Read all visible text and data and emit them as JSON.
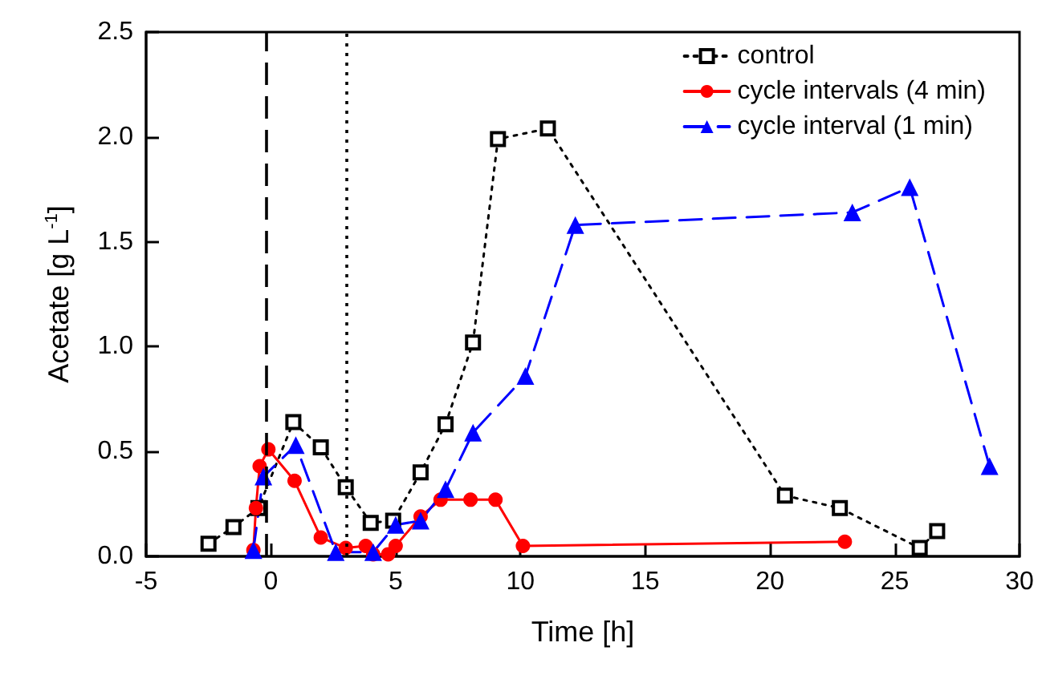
{
  "chart_data": {
    "type": "line",
    "xlabel": "Time [h]",
    "ylabel": "Acetate [g L$^{-1}$]",
    "xlim": [
      -5,
      30
    ],
    "xticks": [
      -5,
      0,
      5,
      10,
      15,
      20,
      25,
      30
    ],
    "ylim": [
      0,
      2.5
    ],
    "yticks": [
      {
        "value": 0,
        "label": "0.0"
      },
      {
        "value": 0.5,
        "label": "0.5"
      },
      {
        "value": 1,
        "label": "1.0"
      },
      {
        "value": 1.5,
        "label": "1.5"
      },
      {
        "value": 2,
        "label": "2.0"
      },
      {
        "value": 2.5,
        "label": "2.5"
      }
    ],
    "grid": false,
    "legend": "top right",
    "ref_lines": [
      {
        "axis": "x",
        "value": -0.2,
        "color": "#000000",
        "line_style": "dashed"
      },
      {
        "axis": "x",
        "value": 3.0,
        "color": "#000000",
        "line_style": "dotted"
      }
    ],
    "series": [
      {
        "name": "control",
        "color": "#000000",
        "marker": "square",
        "line_style": "dotted",
        "x": [
          -2.5,
          -1.5,
          -0.5,
          0.9,
          2.0,
          3.0,
          4.0,
          4.9,
          6.0,
          7.0,
          8.1,
          9.1,
          11.1,
          20.6,
          22.8,
          26.0,
          26.7
        ],
        "values": [
          0.06,
          0.14,
          0.23,
          0.64,
          0.52,
          0.33,
          0.16,
          0.17,
          0.4,
          0.63,
          1.02,
          1.99,
          2.04,
          0.29,
          0.23,
          0.04,
          0.12
        ]
      },
      {
        "name": "cycle intervals (4 min)",
        "color": "#ff0000",
        "marker": "circle",
        "line_style": "solid",
        "x": [
          -0.7,
          -0.6,
          -0.45,
          -0.1,
          0.95,
          2.0,
          3.0,
          3.8,
          4.1,
          4.7,
          5.0,
          6.0,
          6.8,
          8.0,
          9.0,
          10.1,
          23.0
        ],
        "values": [
          0.03,
          0.23,
          0.43,
          0.51,
          0.36,
          0.09,
          0.04,
          0.05,
          0.01,
          0.01,
          0.05,
          0.19,
          0.27,
          0.27,
          0.27,
          0.05,
          0.07
        ]
      },
      {
        "name": "cycle interval (1 min)",
        "color": "#0000ff",
        "marker": "triangle",
        "line_style": "dashed",
        "x": [
          -0.7,
          -0.3,
          1.0,
          2.6,
          4.1,
          5.0,
          6.0,
          7.0,
          8.1,
          10.2,
          12.2,
          23.3,
          25.6,
          28.8
        ],
        "values": [
          0.03,
          0.38,
          0.53,
          0.02,
          0.02,
          0.15,
          0.17,
          0.32,
          0.59,
          0.86,
          1.58,
          1.64,
          1.76,
          0.43
        ]
      }
    ]
  }
}
